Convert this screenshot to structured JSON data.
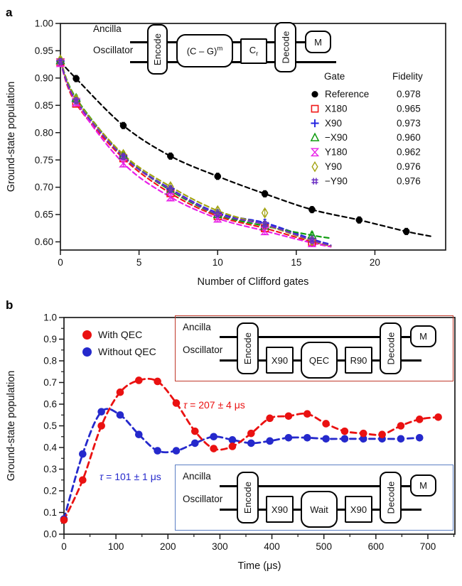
{
  "panel_a": {
    "letter": "a",
    "xlabel": "Number of Clifford gates",
    "ylabel": "Ground-state population",
    "legend_header": {
      "gate": "Gate",
      "fidelity": "Fidelity"
    },
    "circuit": {
      "ancilla": "Ancilla",
      "oscillator": "Oscillator",
      "encode": "Encode",
      "gate_main": "(C – G)",
      "gate_sup": "m",
      "cr_main": "C",
      "cr_sub": "r",
      "decode": "Decode",
      "measure": "M"
    }
  },
  "panel_b": {
    "letter": "b",
    "xlabel": "Time (μs)",
    "ylabel": "Ground-state population",
    "legend": {
      "with": "With QEC",
      "without": "Without QEC"
    },
    "tau_with": {
      "symbol": "τ",
      "text": " = 207 ± 4 μs"
    },
    "tau_without": {
      "symbol": "τ",
      "text": " = 101 ± 1 μs"
    },
    "circuit_qec": {
      "ancilla": "Ancilla",
      "oscillator": "Oscillator",
      "encode": "Encode",
      "box1": "X90",
      "box2": "QEC",
      "box3": "R90",
      "decode": "Decode",
      "measure": "M"
    },
    "circuit_wait": {
      "ancilla": "Ancilla",
      "oscillator": "Oscillator",
      "encode": "Encode",
      "box1": "X90",
      "box2": "Wait",
      "box3": "X90",
      "decode": "Decode",
      "measure": "M"
    }
  },
  "colors": {
    "reference": "#000000",
    "x180": "#f01818",
    "x90": "#2323e0",
    "mx90": "#0e9c0e",
    "y180": "#e821e8",
    "y90": "#a3a312",
    "my90": "#6a2fc4",
    "qec_red": "#ea1111",
    "qec_blue": "#2529cc",
    "axis": "#1a1a1a"
  },
  "chart_data": [
    {
      "type": "scatter",
      "title": "Randomized benchmarking of logical gates",
      "xlabel": "Number of Clifford gates",
      "ylabel": "Ground-state population",
      "xlim": [
        0,
        24.5
      ],
      "ylim": [
        0.585,
        1.0
      ],
      "xticks": [
        0,
        5,
        10,
        15,
        20
      ],
      "yticks": [
        0.6,
        0.65,
        0.7,
        0.75,
        0.8,
        0.85,
        0.9,
        0.95,
        1.0
      ],
      "grid": false,
      "legend_position": "inside-right",
      "series": [
        {
          "name": "Reference",
          "fidelity": "0.978",
          "marker": "circle",
          "color": "#000000",
          "x": [
            0,
            1,
            4,
            7,
            10,
            13,
            16,
            19,
            22
          ],
          "y": [
            0.93,
            0.899,
            0.813,
            0.757,
            0.72,
            0.688,
            0.659,
            0.64,
            0.619
          ]
        },
        {
          "name": "X180",
          "fidelity": "0.965",
          "marker": "square",
          "color": "#f01818",
          "x": [
            0,
            1,
            4,
            7,
            10,
            13,
            16
          ],
          "y": [
            0.929,
            0.853,
            0.753,
            0.689,
            0.647,
            0.625,
            0.6
          ]
        },
        {
          "name": "X90",
          "fidelity": "0.973",
          "marker": "plus",
          "color": "#2323e0",
          "x": [
            0,
            1,
            4,
            7,
            10,
            13,
            16
          ],
          "y": [
            0.931,
            0.86,
            0.757,
            0.697,
            0.653,
            0.635,
            0.605
          ]
        },
        {
          "name": "−X90",
          "fidelity": "0.960",
          "marker": "triangle",
          "color": "#0e9c0e",
          "x": [
            0,
            1,
            4,
            7,
            10,
            13,
            16
          ],
          "y": [
            0.932,
            0.863,
            0.758,
            0.694,
            0.65,
            0.629,
            0.612
          ]
        },
        {
          "name": "Y180",
          "fidelity": "0.962",
          "marker": "hourglass",
          "color": "#e821e8",
          "x": [
            0,
            1,
            4,
            7,
            10,
            13,
            16
          ],
          "y": [
            0.928,
            0.856,
            0.744,
            0.682,
            0.643,
            0.62,
            0.598
          ]
        },
        {
          "name": "Y90",
          "fidelity": "0.976",
          "marker": "diamond",
          "color": "#a3a312",
          "x": [
            0,
            1,
            4,
            7,
            10,
            13,
            16
          ],
          "y": [
            0.933,
            0.861,
            0.76,
            0.701,
            0.657,
            0.653,
            0.602
          ],
          "fit_y": [
            0.933,
            0.861,
            0.76,
            0.701,
            0.657,
            0.631,
            0.602
          ]
        },
        {
          "name": "−Y90",
          "fidelity": "0.976",
          "marker": "hash",
          "color": "#6a2fc4",
          "x": [
            0,
            1,
            4,
            7,
            10,
            13,
            16
          ],
          "y": [
            0.93,
            0.858,
            0.756,
            0.696,
            0.651,
            0.632,
            0.603
          ]
        }
      ]
    },
    {
      "type": "scatter",
      "title": "Ramsey-type oscillation with and without QEC",
      "xlabel": "Time (μs)",
      "ylabel": "Ground-state population",
      "xlim": [
        0,
        752
      ],
      "ylim": [
        0.0,
        1.0
      ],
      "xticks": [
        0,
        100,
        200,
        300,
        400,
        500,
        600,
        700
      ],
      "xminor_step": 50,
      "yticks": [
        0.0,
        0.1,
        0.2,
        0.3,
        0.4,
        0.5,
        0.6,
        0.7,
        0.8,
        0.9,
        1.0
      ],
      "yminor_step": 0.05,
      "grid": false,
      "legend_position": "inside-top-left",
      "series": [
        {
          "name": "Without QEC",
          "tau": "101 ± 1 μs",
          "marker": "circle",
          "color": "#2529cc",
          "x": [
            0,
            36,
            72,
            108,
            144,
            180,
            216,
            252,
            288,
            324,
            360,
            396,
            432,
            468,
            504,
            540,
            576,
            612,
            648,
            684
          ],
          "y": [
            0.07,
            0.37,
            0.565,
            0.55,
            0.46,
            0.385,
            0.385,
            0.42,
            0.45,
            0.435,
            0.42,
            0.43,
            0.445,
            0.445,
            0.44,
            0.44,
            0.44,
            0.44,
            0.44,
            0.445
          ]
        },
        {
          "name": "With QEC",
          "tau": "207 ± 4 μs",
          "marker": "circle",
          "color": "#ea1111",
          "x": [
            0,
            36,
            72,
            108,
            144,
            180,
            216,
            252,
            288,
            324,
            360,
            396,
            432,
            468,
            504,
            540,
            576,
            612,
            648,
            684,
            720
          ],
          "y": [
            0.065,
            0.25,
            0.5,
            0.655,
            0.71,
            0.705,
            0.605,
            0.475,
            0.395,
            0.405,
            0.465,
            0.535,
            0.545,
            0.555,
            0.51,
            0.475,
            0.465,
            0.46,
            0.5,
            0.53,
            0.54
          ]
        }
      ],
      "annotations": [
        {
          "text": "τ = 207 ± 4 μs",
          "color": "#ea1111"
        },
        {
          "text": "τ = 101 ± 1 μs",
          "color": "#2529cc"
        }
      ]
    }
  ]
}
